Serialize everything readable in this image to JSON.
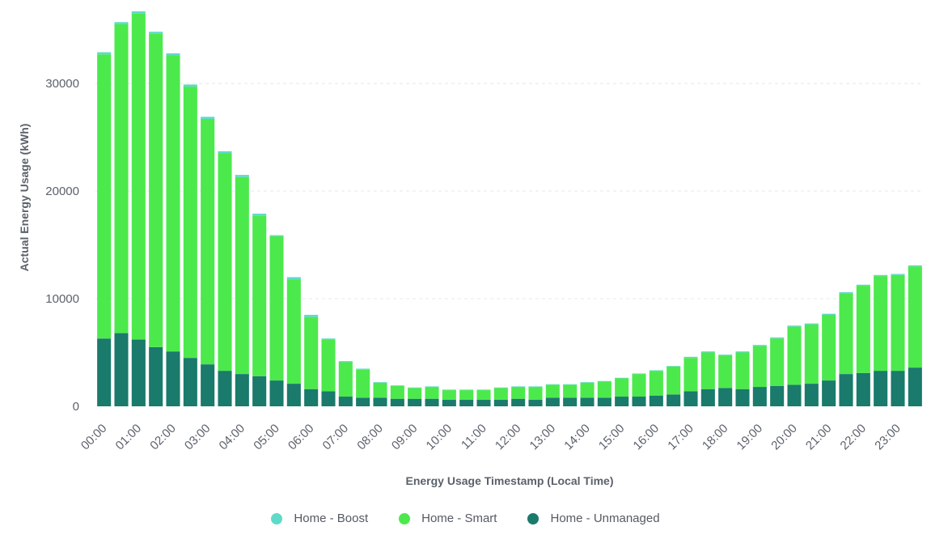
{
  "chart_data": {
    "type": "bar",
    "stacked": true,
    "title": "",
    "xlabel": "Energy Usage Timestamp (Local Time)",
    "ylabel": "Actual Energy Usage (kWh)",
    "ylim": [
      0,
      37000
    ],
    "yticks": [
      0,
      10000,
      20000,
      30000
    ],
    "ytick_labels": [
      "0",
      "10000",
      "20000",
      "30000"
    ],
    "grid": "horizontal dashed",
    "legend_position": "bottom",
    "categories": [
      "00:00",
      "00:30",
      "01:00",
      "01:30",
      "02:00",
      "02:30",
      "03:00",
      "03:30",
      "04:00",
      "04:30",
      "05:00",
      "05:30",
      "06:00",
      "06:30",
      "07:00",
      "07:30",
      "08:00",
      "08:30",
      "09:00",
      "09:30",
      "10:00",
      "10:30",
      "11:00",
      "11:30",
      "12:00",
      "12:30",
      "13:00",
      "13:30",
      "14:00",
      "14:30",
      "15:00",
      "15:30",
      "16:00",
      "16:30",
      "17:00",
      "17:30",
      "18:00",
      "18:30",
      "19:00",
      "19:30",
      "20:00",
      "20:30",
      "21:00",
      "21:30",
      "22:00",
      "22:30",
      "23:00",
      "23:30"
    ],
    "x_tick_labels": [
      "00:00",
      "01:00",
      "02:00",
      "03:00",
      "04:00",
      "05:00",
      "06:00",
      "07:00",
      "08:00",
      "09:00",
      "10:00",
      "11:00",
      "12:00",
      "13:00",
      "14:00",
      "15:00",
      "16:00",
      "17:00",
      "18:00",
      "19:00",
      "20:00",
      "21:00",
      "22:00",
      "23:00"
    ],
    "series": [
      {
        "name": "Home - Unmanaged",
        "color": "#1a7a6c",
        "values": [
          6300,
          6800,
          6200,
          5500,
          5100,
          4500,
          3900,
          3300,
          3000,
          2800,
          2400,
          2100,
          1600,
          1400,
          900,
          800,
          800,
          700,
          700,
          700,
          600,
          600,
          600,
          600,
          700,
          600,
          800,
          800,
          800,
          800,
          900,
          900,
          1000,
          1100,
          1400,
          1600,
          1700,
          1600,
          1800,
          1900,
          2000,
          2100,
          2400,
          3000,
          3100,
          3300,
          3300,
          3600
        ]
      },
      {
        "name": "Home - Smart",
        "color": "#4ce94c",
        "values": [
          26400,
          28700,
          30300,
          29100,
          27500,
          25200,
          22800,
          20200,
          18300,
          14900,
          13400,
          9700,
          6700,
          4800,
          3200,
          2600,
          1400,
          1200,
          1000,
          1100,
          900,
          900,
          900,
          1100,
          1100,
          1200,
          1200,
          1200,
          1400,
          1500,
          1700,
          2100,
          2300,
          2600,
          3100,
          3400,
          3000,
          3400,
          3800,
          4400,
          5400,
          5500,
          6100,
          7500,
          8100,
          8800,
          8900,
          9400
        ]
      },
      {
        "name": "Home - Boost",
        "color": "#5ddbc8",
        "values": [
          200,
          200,
          200,
          200,
          200,
          200,
          200,
          200,
          200,
          200,
          100,
          200,
          200,
          100,
          100,
          100,
          50,
          50,
          50,
          50,
          50,
          50,
          50,
          50,
          50,
          50,
          50,
          50,
          50,
          50,
          50,
          50,
          50,
          50,
          100,
          100,
          100,
          100,
          100,
          100,
          100,
          100,
          100,
          100,
          100,
          100,
          100,
          100
        ]
      }
    ],
    "legend_order": [
      "Home - Boost",
      "Home - Smart",
      "Home - Unmanaged"
    ]
  }
}
